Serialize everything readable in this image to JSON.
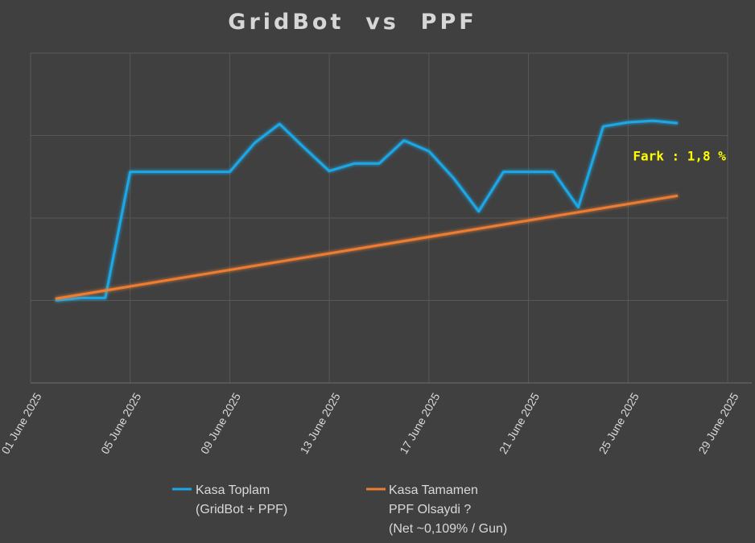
{
  "chart_data": {
    "type": "line",
    "title": "GridBot  vs  PPF",
    "x_tick_labels": [
      "01 June 2025",
      "05 June 2025",
      "09 June 2025",
      "13 June 2025",
      "17 June 2025",
      "21 June 2025",
      "25 June 2025",
      "29 June 2025"
    ],
    "x_range": [
      "2025-06-01",
      "2025-06-29"
    ],
    "y_range": [
      0,
      4
    ],
    "y_tick_labels_shown": false,
    "grid": true,
    "legend_position": "bottom",
    "series": [
      {
        "name": "Kasa Toplam",
        "name_line2": "(GridBot + PPF)",
        "color": "#1aa7e6",
        "x": [
          "2025-06-02",
          "2025-06-03",
          "2025-06-04",
          "2025-06-05",
          "2025-06-06",
          "2025-06-07",
          "2025-06-08",
          "2025-06-09",
          "2025-06-10",
          "2025-06-11",
          "2025-06-12",
          "2025-06-13",
          "2025-06-14",
          "2025-06-15",
          "2025-06-16",
          "2025-06-17",
          "2025-06-18",
          "2025-06-19",
          "2025-06-20",
          "2025-06-21",
          "2025-06-22",
          "2025-06-23",
          "2025-06-24",
          "2025-06-25",
          "2025-06-26",
          "2025-06-27"
        ],
        "values": [
          1.0,
          1.03,
          1.03,
          2.56,
          2.56,
          2.56,
          2.56,
          2.56,
          2.91,
          3.14,
          2.85,
          2.57,
          2.66,
          2.66,
          2.94,
          2.81,
          2.48,
          2.08,
          2.56,
          2.56,
          2.56,
          2.13,
          3.11,
          3.16,
          3.18,
          3.15
        ]
      },
      {
        "name": "Kasa Tamamen",
        "name_line2": "PPF Olsaydi ?",
        "name_line3": "(Net ~0,109% / Gun)",
        "color": "#ed7d31",
        "x": [
          "2025-06-02",
          "2025-06-27"
        ],
        "values": [
          1.02,
          2.27
        ]
      }
    ],
    "annotations": [
      {
        "text": "Fark : 1,8 %",
        "x": "2025-06-27",
        "y": 2.7,
        "color": "#ffff00"
      }
    ]
  }
}
